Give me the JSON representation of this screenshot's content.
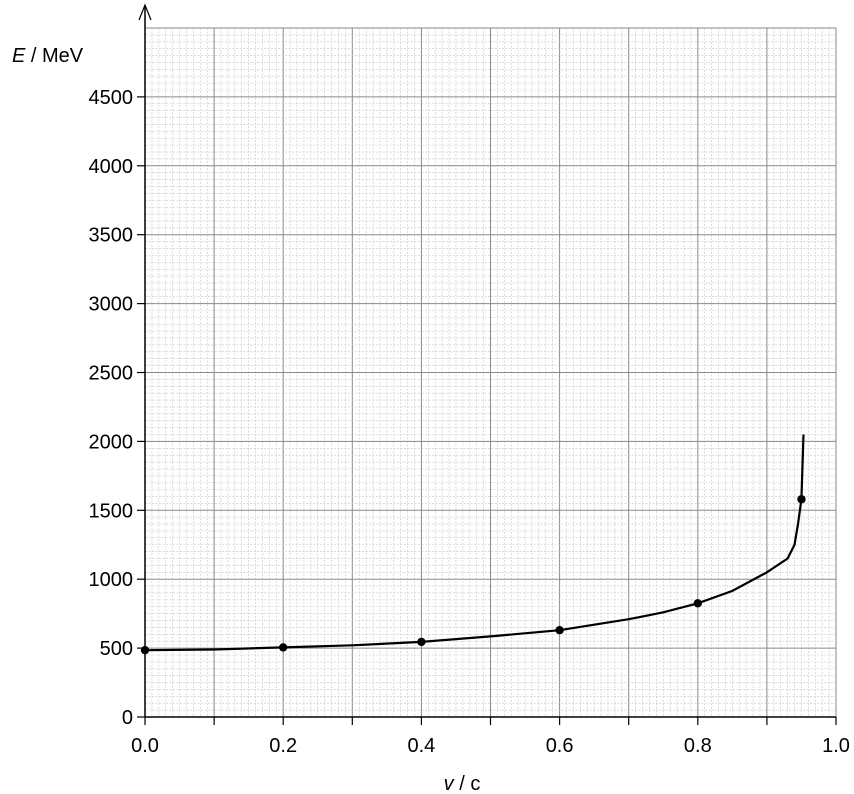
{
  "chart_data": {
    "type": "scatter",
    "title": "",
    "xlabel_var": "v",
    "xlabel_unit": " / c",
    "ylabel_var": "E",
    "ylabel_unit": " / MeV",
    "xlim": [
      0,
      1.0
    ],
    "ylim": [
      0,
      5000
    ],
    "x_ticks": [
      0.0,
      0.2,
      0.4,
      0.6,
      0.8,
      1.0
    ],
    "x_tick_labels": [
      "0.0",
      "0.2",
      "0.4",
      "0.6",
      "0.8",
      "1.0"
    ],
    "y_ticks": [
      0,
      500,
      1000,
      1500,
      2000,
      2500,
      3000,
      3500,
      4000,
      4500
    ],
    "y_tick_labels": [
      "0",
      "500",
      "1000",
      "1500",
      "2000",
      "2500",
      "3000",
      "3500",
      "4000",
      "4500"
    ],
    "grid": true,
    "points": {
      "x": [
        0.0,
        0.2,
        0.4,
        0.6,
        0.8,
        0.95
      ],
      "y": [
        485,
        505,
        545,
        630,
        825,
        1580
      ]
    },
    "curve": {
      "x": [
        0.0,
        0.1,
        0.2,
        0.3,
        0.4,
        0.5,
        0.6,
        0.7,
        0.75,
        0.8,
        0.85,
        0.9,
        0.93,
        0.94,
        0.945,
        0.95,
        0.953
      ],
      "y": [
        485,
        490,
        505,
        520,
        545,
        585,
        630,
        710,
        760,
        825,
        915,
        1050,
        1150,
        1250,
        1400,
        1580,
        2050
      ]
    }
  }
}
